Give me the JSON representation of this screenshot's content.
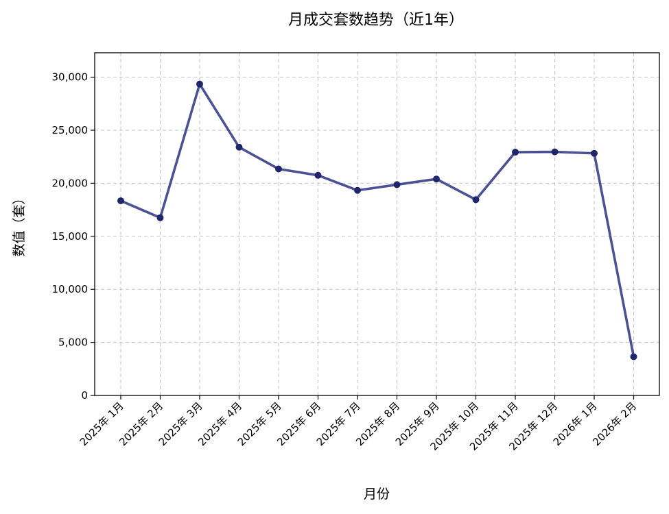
{
  "chart_data": {
    "type": "line",
    "title": "月成交套数趋势（近1年）",
    "xlabel": "月份",
    "ylabel": "数值（套）",
    "categories": [
      "2025年 1月",
      "2025年 2月",
      "2025年 3月",
      "2025年 4月",
      "2025年 5月",
      "2025年 6月",
      "2025年 7月",
      "2025年 8月",
      "2025年 9月",
      "2025年 10月",
      "2025年 11月",
      "2025年 12月",
      "2026年 1月",
      "2026年 2月"
    ],
    "series": [
      {
        "values": [
          18350,
          16750,
          29350,
          23400,
          21350,
          20750,
          19330,
          19870,
          20400,
          18450,
          22930,
          22960,
          22820,
          3650
        ]
      }
    ],
    "ylim": [
      0,
      32300
    ],
    "yticks": [
      0,
      5000,
      10000,
      15000,
      20000,
      25000,
      30000
    ],
    "ytick_labels": [
      "0",
      "5,000",
      "10,000",
      "15,000",
      "20,000",
      "25,000",
      "30,000"
    ],
    "grid": true,
    "colors": {
      "line": "#2b3283",
      "marker": "#20266b"
    }
  }
}
